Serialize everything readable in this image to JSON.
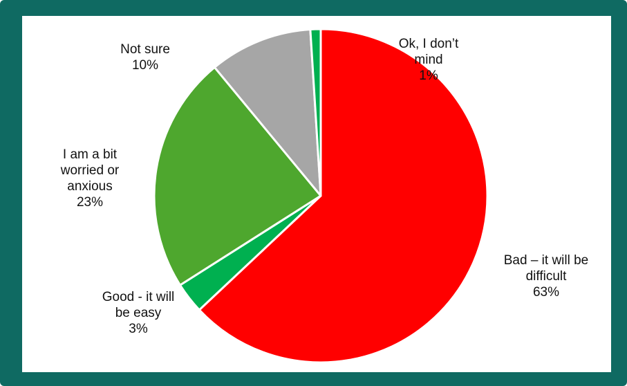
{
  "chart_data": {
    "type": "pie",
    "start_angle_deg": 0,
    "direction": "clockwise",
    "slices": [
      {
        "name": "Bad – it will be difficult",
        "value": 63,
        "label_lines": [
          "Bad – it will be",
          "difficult",
          "63%"
        ],
        "color": "#ff0000"
      },
      {
        "name": "Good - it will be easy",
        "value": 3,
        "label_lines": [
          "Good - it will",
          "be easy",
          "3%"
        ],
        "color": "#00b050"
      },
      {
        "name": "I am a bit worried or anxious",
        "value": 23,
        "label_lines": [
          "I am a bit",
          "worried or",
          "anxious",
          "23%"
        ],
        "color": "#4ea72e"
      },
      {
        "name": "Not sure",
        "value": 10,
        "label_lines": [
          "Not sure",
          "10%"
        ],
        "color": "#a6a6a6"
      },
      {
        "name": "Ok, I don’t mind",
        "value": 1,
        "label_lines": [
          "Ok, I don’t",
          "mind",
          "1%"
        ],
        "color": "#00b050"
      }
    ]
  }
}
